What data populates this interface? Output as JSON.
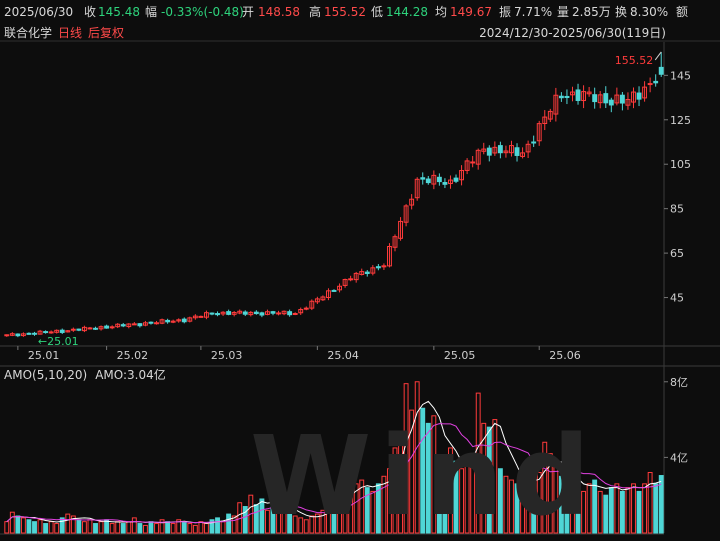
{
  "info": {
    "date": "2025/06/30",
    "close_label": "收",
    "close": "145.48",
    "change_label": "幅",
    "change": "-0.33%(-0.48)",
    "open_label": "开",
    "open": "148.58",
    "high_label": "高",
    "high": "155.52",
    "low_label": "低",
    "low": "144.28",
    "avg_label": "均",
    "avg": "149.67",
    "amp_label": "振",
    "amp": "7.71%",
    "vol_label": "量",
    "vol": "2.85万",
    "turnover_label": "换",
    "turnover": "8.30%",
    "amount_label": "额"
  },
  "stock": {
    "name": "联合化学",
    "period": "日线",
    "adjust": "后复权"
  },
  "range_text": "2024/12/30-2025/06/30(119日)",
  "watermark": "Wind",
  "volume_title": {
    "name": "AMO(5,10,20)",
    "value": "AMO:3.04亿"
  },
  "colors": {
    "up": "#ff3b3b",
    "down": "#4fd6d6",
    "ma5": "#ffffff",
    "ma10": "#e040e0",
    "ma20": "#e8d44a",
    "background": "#0d0d0d"
  },
  "chart_data": [
    {
      "type": "candlestick",
      "title": "",
      "period_days": 119,
      "y_ticks": [
        45,
        65,
        85,
        105,
        125,
        145
      ],
      "ylim": [
        25,
        160
      ],
      "x_ticks": [
        "25.01",
        "25.02",
        "25.03",
        "25.04",
        "25.05",
        "25.06"
      ],
      "x_tick_days": [
        2,
        18,
        35,
        56,
        77,
        96
      ],
      "annotations": [
        {
          "text": "155.52",
          "meaning": "period high"
        },
        {
          "text": "←25.01",
          "meaning": "period low"
        }
      ],
      "segments": [
        {
          "from_day": 0,
          "to_day": 10,
          "start": 28,
          "end": 30
        },
        {
          "from_day": 10,
          "to_day": 32,
          "start": 30,
          "end": 35
        },
        {
          "from_day": 32,
          "to_day": 37,
          "start": 35,
          "end": 38
        },
        {
          "from_day": 37,
          "to_day": 52,
          "start": 38,
          "end": 38
        },
        {
          "from_day": 52,
          "to_day": 56,
          "start": 38,
          "end": 44
        },
        {
          "from_day": 56,
          "to_day": 62,
          "start": 44,
          "end": 54
        },
        {
          "from_day": 62,
          "to_day": 68,
          "start": 54,
          "end": 60
        },
        {
          "from_day": 68,
          "to_day": 74,
          "start": 60,
          "end": 98
        },
        {
          "from_day": 74,
          "to_day": 80,
          "start": 98,
          "end": 97
        },
        {
          "from_day": 80,
          "to_day": 86,
          "start": 97,
          "end": 112
        },
        {
          "from_day": 86,
          "to_day": 93,
          "start": 112,
          "end": 110
        },
        {
          "from_day": 93,
          "to_day": 100,
          "start": 110,
          "end": 137
        },
        {
          "from_day": 100,
          "to_day": 106,
          "start": 137,
          "end": 135
        },
        {
          "from_day": 106,
          "to_day": 112,
          "start": 135,
          "end": 133
        },
        {
          "from_day": 112,
          "to_day": 118,
          "start": 133,
          "end": 146
        }
      ],
      "last_candle": {
        "open": 148.58,
        "high": 155.52,
        "low": 144.28,
        "close": 145.48
      }
    },
    {
      "type": "bar",
      "title": "",
      "unit": "亿",
      "y_ticks": [
        "4亿",
        "8亿"
      ],
      "y_tick_values": [
        4,
        8
      ],
      "ylim": [
        0,
        8.2
      ],
      "series": [
        {
          "name": "AMO",
          "values": [
            0.6,
            1.1,
            0.9,
            0.8,
            0.7,
            0.6,
            0.7,
            0.5,
            0.6,
            0.5,
            0.8,
            1.0,
            0.9,
            0.7,
            0.6,
            0.7,
            0.5,
            0.6,
            0.7,
            0.5,
            0.6,
            0.5,
            0.6,
            0.8,
            0.5,
            0.4,
            0.6,
            0.5,
            0.7,
            0.6,
            0.5,
            0.7,
            0.6,
            0.5,
            0.4,
            0.6,
            0.5,
            0.7,
            0.8,
            0.6,
            1.0,
            0.9,
            1.6,
            1.4,
            2.0,
            1.5,
            1.8,
            1.2,
            1.6,
            1.4,
            1.3,
            1.0,
            0.9,
            0.8,
            0.7,
            0.9,
            1.0,
            1.2,
            1.5,
            1.8,
            2.0,
            2.5,
            2.2,
            2.6,
            2.8,
            2.4,
            2.2,
            2.6,
            3.0,
            3.4,
            4.5,
            5.0,
            7.9,
            6.5,
            8.0,
            6.6,
            5.8,
            6.2,
            4.0,
            3.2,
            4.5,
            3.8,
            3.4,
            4.0,
            4.2,
            7.4,
            5.8,
            5.6,
            6.0,
            3.4,
            3.0,
            2.8,
            2.6,
            2.8,
            3.0,
            2.6,
            3.2,
            4.8,
            4.2,
            3.6,
            3.0,
            2.8,
            2.6,
            2.4,
            2.2,
            2.6,
            2.8,
            2.2,
            2.0,
            2.4,
            2.6,
            2.2,
            2.4,
            2.6,
            2.2,
            2.6,
            3.2,
            2.6,
            3.04
          ]
        },
        {
          "name": "MA5",
          "values": []
        },
        {
          "name": "MA10",
          "values": []
        }
      ]
    }
  ]
}
